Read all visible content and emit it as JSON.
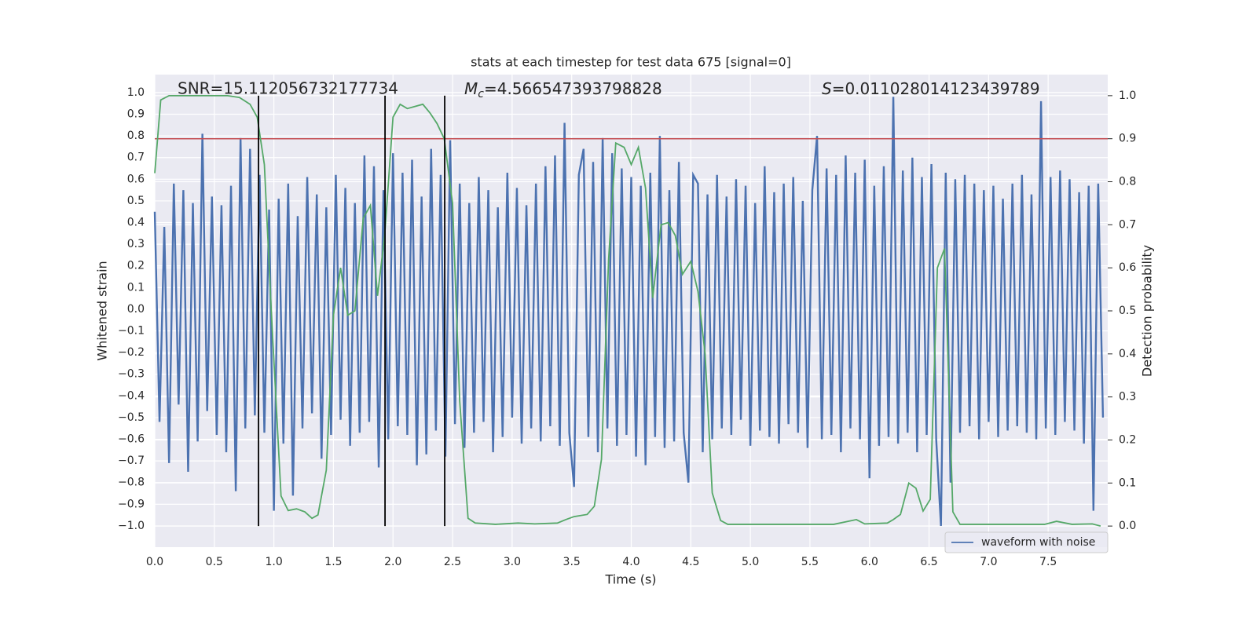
{
  "chart_data": {
    "type": "line",
    "title": "stats at each timestep for test data 675 [signal=0]",
    "xlabel": "Time (s)",
    "ylabel": "Whitened strain",
    "y2label": "Detection probability",
    "annotations": {
      "snr": "SNR=15.112056732177734",
      "mc": {
        "symbol": "M",
        "sub": "c",
        "text": "=4.566547393798828"
      },
      "s": {
        "symbol": "S",
        "text": "=0.011028014123439789"
      }
    },
    "xlim": [
      0,
      8
    ],
    "ylim": [
      -1.098,
      1.083
    ],
    "y2lim": [
      -0.049,
      1.049
    ],
    "grid": true,
    "legend": "lower right",
    "background": "#eaeaf2",
    "xticks": [
      {
        "value": 0,
        "label": "0.0"
      },
      {
        "value": 0.5,
        "label": "0.5"
      },
      {
        "value": 1,
        "label": "1.0"
      },
      {
        "value": 1.5,
        "label": "1.5"
      },
      {
        "value": 2,
        "label": "2.0"
      },
      {
        "value": 2.5,
        "label": "2.5"
      },
      {
        "value": 3,
        "label": "3.0"
      },
      {
        "value": 3.5,
        "label": "3.5"
      },
      {
        "value": 4,
        "label": "4.0"
      },
      {
        "value": 4.5,
        "label": "4.5"
      },
      {
        "value": 5,
        "label": "5.0"
      },
      {
        "value": 5.5,
        "label": "5.5"
      },
      {
        "value": 6,
        "label": "6.0"
      },
      {
        "value": 6.5,
        "label": "6.5"
      },
      {
        "value": 7,
        "label": "7.0"
      },
      {
        "value": 7.5,
        "label": "7.5"
      }
    ],
    "yticks": [
      {
        "value": -1,
        "label": "−1.0"
      },
      {
        "value": -0.9,
        "label": "−0.9"
      },
      {
        "value": -0.8,
        "label": "−0.8"
      },
      {
        "value": -0.7,
        "label": "−0.7"
      },
      {
        "value": -0.6,
        "label": "−0.6"
      },
      {
        "value": -0.5,
        "label": "−0.5"
      },
      {
        "value": -0.4,
        "label": "−0.4"
      },
      {
        "value": -0.3,
        "label": "−0.3"
      },
      {
        "value": -0.2,
        "label": "−0.2"
      },
      {
        "value": -0.1,
        "label": "−0.1"
      },
      {
        "value": 0,
        "label": "0.0"
      },
      {
        "value": 0.1,
        "label": "0.1"
      },
      {
        "value": 0.2,
        "label": "0.2"
      },
      {
        "value": 0.3,
        "label": "0.3"
      },
      {
        "value": 0.4,
        "label": "0.4"
      },
      {
        "value": 0.5,
        "label": "0.5"
      },
      {
        "value": 0.6,
        "label": "0.6"
      },
      {
        "value": 0.7,
        "label": "0.7"
      },
      {
        "value": 0.8,
        "label": "0.8"
      },
      {
        "value": 0.9,
        "label": "0.9"
      },
      {
        "value": 1,
        "label": "1.0"
      }
    ],
    "y2ticks": [
      {
        "value": 0,
        "label": "0.0"
      },
      {
        "value": 0.1,
        "label": "0.1"
      },
      {
        "value": 0.2,
        "label": "0.2"
      },
      {
        "value": 0.3,
        "label": "0.3"
      },
      {
        "value": 0.4,
        "label": "0.4"
      },
      {
        "value": 0.5,
        "label": "0.5"
      },
      {
        "value": 0.6,
        "label": "0.6"
      },
      {
        "value": 0.7,
        "label": "0.7"
      },
      {
        "value": 0.8,
        "label": "0.8"
      },
      {
        "value": 0.9,
        "label": "0.9"
      },
      {
        "value": 1,
        "label": "1.0"
      }
    ],
    "series": [
      {
        "name": "waveform with noise",
        "color": "#4c72b0",
        "x": [
          0,
          0.04,
          0.08,
          0.12,
          0.16,
          0.2,
          0.24,
          0.28,
          0.32,
          0.36,
          0.4,
          0.44,
          0.48,
          0.52,
          0.56,
          0.6,
          0.64,
          0.68,
          0.72,
          0.76,
          0.8,
          0.84,
          0.88,
          0.92,
          0.96,
          1,
          1.04,
          1.08,
          1.12,
          1.16,
          1.2,
          1.24,
          1.28,
          1.32,
          1.36,
          1.4,
          1.44,
          1.48,
          1.52,
          1.56,
          1.6,
          1.64,
          1.68,
          1.72,
          1.76,
          1.8,
          1.84,
          1.88,
          1.92,
          1.96,
          2,
          2.04,
          2.08,
          2.12,
          2.16,
          2.2,
          2.24,
          2.28,
          2.32,
          2.36,
          2.4,
          2.44,
          2.48,
          2.52,
          2.56,
          2.6,
          2.64,
          2.68,
          2.72,
          2.76,
          2.8,
          2.84,
          2.88,
          2.92,
          2.96,
          3,
          3.04,
          3.08,
          3.12,
          3.16,
          3.2,
          3.24,
          3.28,
          3.32,
          3.36,
          3.4,
          3.44,
          3.48,
          3.52,
          3.56,
          3.6,
          3.64,
          3.68,
          3.72,
          3.76,
          3.8,
          3.84,
          3.88,
          3.92,
          3.96,
          4,
          4.04,
          4.08,
          4.12,
          4.16,
          4.2,
          4.24,
          4.28,
          4.32,
          4.36,
          4.4,
          4.44,
          4.48,
          4.52,
          4.56,
          4.6,
          4.64,
          4.68,
          4.72,
          4.76,
          4.8,
          4.84,
          4.88,
          4.92,
          4.96,
          5,
          5.04,
          5.08,
          5.12,
          5.16,
          5.2,
          5.24,
          5.28,
          5.32,
          5.36,
          5.4,
          5.44,
          5.48,
          5.52,
          5.56,
          5.6,
          5.64,
          5.68,
          5.72,
          5.76,
          5.8,
          5.84,
          5.88,
          5.92,
          5.96,
          6,
          6.04,
          6.08,
          6.12,
          6.16,
          6.2,
          6.24,
          6.28,
          6.32,
          6.36,
          6.4,
          6.44,
          6.48,
          6.52,
          6.56,
          6.6,
          6.64,
          6.68,
          6.72,
          6.76,
          6.8,
          6.84,
          6.88,
          6.92,
          6.96,
          7,
          7.04,
          7.08,
          7.12,
          7.16,
          7.2,
          7.24,
          7.28,
          7.32,
          7.36,
          7.4,
          7.44,
          7.48,
          7.52,
          7.56,
          7.6,
          7.64,
          7.68,
          7.72,
          7.76,
          7.8,
          7.84,
          7.88,
          7.92,
          7.96
        ],
        "values": [
          0.45,
          -0.52,
          0.38,
          -0.71,
          0.58,
          -0.44,
          0.55,
          -0.75,
          0.49,
          -0.61,
          0.81,
          -0.47,
          0.52,
          -0.58,
          0.48,
          -0.66,
          0.57,
          -0.84,
          0.79,
          -0.55,
          0.74,
          -0.49,
          0.62,
          -0.57,
          0.46,
          -0.93,
          0.51,
          -0.62,
          0.58,
          -0.86,
          0.43,
          -0.55,
          0.61,
          -0.48,
          0.53,
          -0.69,
          0.47,
          -0.58,
          0.62,
          -0.51,
          0.56,
          -0.63,
          0.49,
          -0.57,
          0.71,
          -0.52,
          0.66,
          -0.73,
          0.55,
          -0.6,
          0.72,
          -0.54,
          0.63,
          -0.58,
          0.69,
          -0.72,
          0.52,
          -0.67,
          0.74,
          -0.56,
          0.62,
          -0.68,
          0.78,
          -0.53,
          0.58,
          -0.64,
          0.49,
          -0.57,
          0.61,
          -0.52,
          0.55,
          -0.66,
          0.47,
          -0.59,
          0.63,
          -0.5,
          0.56,
          -0.62,
          0.48,
          -0.55,
          0.58,
          -0.61,
          0.66,
          -0.54,
          0.71,
          -0.63,
          0.86,
          -0.57,
          -0.82,
          0.62,
          0.74,
          -0.59,
          0.68,
          -0.66,
          0.79,
          -0.55,
          0.72,
          -0.63,
          0.65,
          -0.58,
          0.61,
          -0.68,
          0.57,
          -0.72,
          0.63,
          -0.59,
          0.8,
          -0.64,
          0.55,
          -0.61,
          0.68,
          -0.57,
          -0.8,
          0.62,
          0.58,
          -0.66,
          0.53,
          -0.6,
          0.62,
          -0.55,
          0.52,
          -0.58,
          0.6,
          -0.51,
          0.57,
          -0.63,
          0.49,
          -0.56,
          0.66,
          -0.59,
          0.54,
          -0.62,
          0.58,
          -0.53,
          0.61,
          -0.57,
          0.5,
          -0.64,
          0.55,
          0.8,
          -0.6,
          0.65,
          -0.58,
          0.62,
          -0.66,
          0.71,
          -0.55,
          0.63,
          -0.6,
          0.69,
          -0.78,
          0.57,
          -0.63,
          0.66,
          -0.59,
          0.98,
          -0.62,
          0.64,
          -0.57,
          0.7,
          -0.66,
          0.61,
          -0.58,
          0.67,
          -0.6,
          -1.0,
          0.63,
          -0.8,
          0.6,
          -0.57,
          0.62,
          -0.54,
          0.58,
          -0.6,
          0.55,
          -0.52,
          0.57,
          -0.59,
          0.51,
          -0.56,
          0.58,
          -0.54,
          0.62,
          -0.57,
          0.53,
          -0.6,
          0.96,
          -0.55,
          0.61,
          -0.58,
          0.64,
          -0.52,
          0.6,
          -0.56,
          0.54,
          -0.62,
          0.57,
          -0.93,
          0.58,
          -0.5
        ]
      }
    ],
    "probability": {
      "color": "#55a868",
      "axis": "y2",
      "x": [
        0,
        0.05,
        0.12,
        0.61,
        0.71,
        0.8,
        0.86,
        0.92,
        0.98,
        1.06,
        1.12,
        1.19,
        1.26,
        1.32,
        1.37,
        1.44,
        1.5,
        1.56,
        1.62,
        1.68,
        1.75,
        1.81,
        1.87,
        1.93,
        2.0,
        2.06,
        2.12,
        2.25,
        2.31,
        2.37,
        2.43,
        2.5,
        2.56,
        2.63,
        2.69,
        2.86,
        3.05,
        3.19,
        3.38,
        3.45,
        3.52,
        3.63,
        3.69,
        3.75,
        3.81,
        3.87,
        3.94,
        4.0,
        4.06,
        4.12,
        4.18,
        4.25,
        4.31,
        4.37,
        4.43,
        4.5,
        4.56,
        4.62,
        4.68,
        4.75,
        4.81,
        5.7,
        5.82,
        5.89,
        5.96,
        6.15,
        6.2,
        6.26,
        6.33,
        6.39,
        6.45,
        6.51,
        6.57,
        6.63,
        6.7,
        6.76,
        7.47,
        7.57,
        7.7,
        7.87,
        7.94
      ],
      "values": [
        0.82,
        0.99,
        1.0,
        1.0,
        0.996,
        0.98,
        0.95,
        0.84,
        0.49,
        0.07,
        0.036,
        0.04,
        0.033,
        0.018,
        0.026,
        0.13,
        0.49,
        0.6,
        0.49,
        0.5,
        0.715,
        0.745,
        0.535,
        0.675,
        0.95,
        0.98,
        0.97,
        0.98,
        0.96,
        0.935,
        0.9,
        0.75,
        0.29,
        0.018,
        0.007,
        0.004,
        0.007,
        0.005,
        0.007,
        0.015,
        0.022,
        0.027,
        0.046,
        0.155,
        0.62,
        0.89,
        0.88,
        0.84,
        0.88,
        0.785,
        0.53,
        0.7,
        0.705,
        0.675,
        0.585,
        0.615,
        0.545,
        0.4,
        0.077,
        0.013,
        0.004,
        0.004,
        0.011,
        0.015,
        0.005,
        0.007,
        0.015,
        0.027,
        0.1,
        0.088,
        0.035,
        0.062,
        0.6,
        0.645,
        0.033,
        0.004,
        0.004,
        0.011,
        0.004,
        0.005,
        0.0
      ]
    },
    "threshold": {
      "value": 0.9,
      "axis": "y2",
      "color": "#c44e52"
    },
    "vlines": {
      "x": [
        0.871,
        1.933,
        2.434
      ],
      "span": [
        0,
        1
      ],
      "axis": "y2",
      "color": "#000000"
    }
  }
}
